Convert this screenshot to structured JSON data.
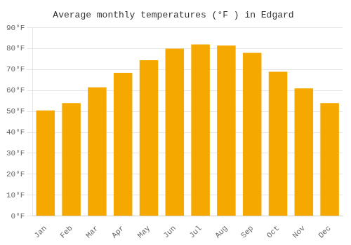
{
  "chart_data": {
    "type": "bar",
    "title": "Average monthly temperatures (°F ) in Edgard",
    "categories": [
      "Jan",
      "Feb",
      "Mar",
      "Apr",
      "May",
      "Jun",
      "Jul",
      "Aug",
      "Sep",
      "Oct",
      "Nov",
      "Dec"
    ],
    "values": [
      50.5,
      54,
      61.5,
      68.5,
      74.5,
      80,
      82,
      81.5,
      78,
      69,
      61,
      54
    ],
    "color": "#F5A800",
    "ylim": [
      0,
      90
    ],
    "yticks": [
      {
        "value": 0,
        "label": "0°F"
      },
      {
        "value": 10,
        "label": "10°F"
      },
      {
        "value": 20,
        "label": "20°F"
      },
      {
        "value": 30,
        "label": "30°F"
      },
      {
        "value": 40,
        "label": "40°F"
      },
      {
        "value": 50,
        "label": "50°F"
      },
      {
        "value": 60,
        "label": "60°F"
      },
      {
        "value": 70,
        "label": "70°F"
      },
      {
        "value": 80,
        "label": "80°F"
      },
      {
        "value": 90,
        "label": "90°F"
      }
    ],
    "grid": true
  }
}
